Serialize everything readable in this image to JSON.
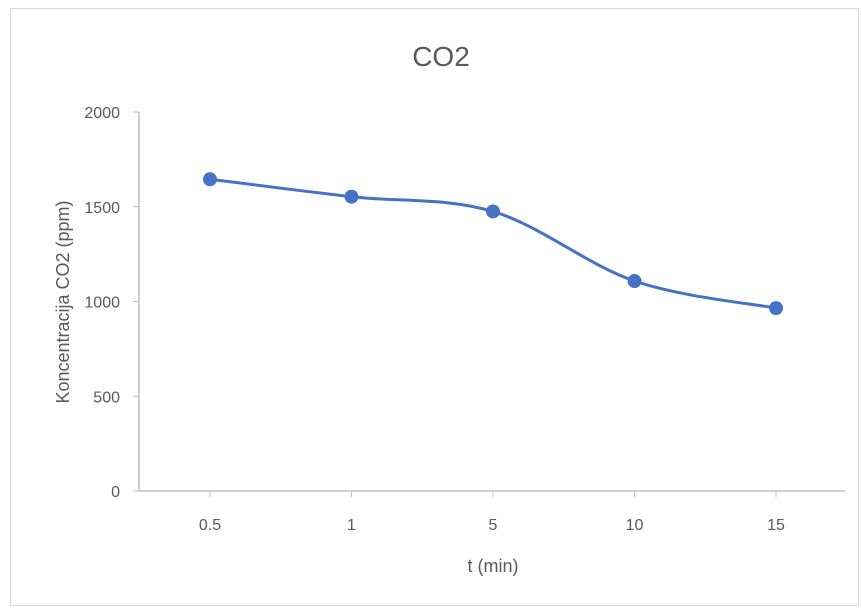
{
  "chart_data": {
    "type": "line",
    "title": "CO2",
    "xlabel": "t (min)",
    "ylabel": "Koncentracija CO2 (ppm)",
    "categories": [
      "0.5",
      "1",
      "5",
      "10",
      "15"
    ],
    "series": [
      {
        "values": [
          1645,
          1553,
          1475,
          1108,
          965
        ]
      }
    ],
    "ylim": [
      0,
      2000
    ],
    "yticks": [
      "0",
      "500",
      "1000",
      "1500",
      "2000"
    ],
    "grid": false,
    "legend": "none",
    "line_color": "#4472c4",
    "axis_color": "#bfbfbf"
  }
}
